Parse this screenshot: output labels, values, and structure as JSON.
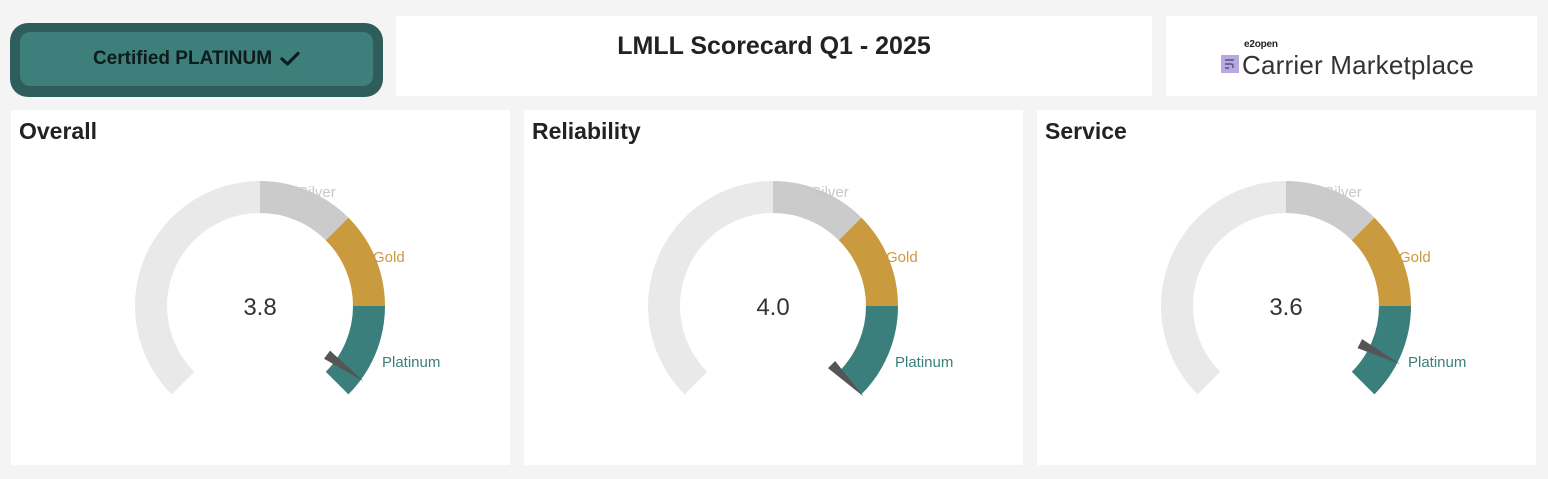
{
  "header": {
    "badge_label": "Certified PLATINUM",
    "badge_icon": "checkmark-icon",
    "title": "LMLL Scorecard Q1 - 2025",
    "logo_small": "e2open",
    "logo_text": "Carrier Marketplace",
    "logo_icon": "carrier-marketplace-logo-icon"
  },
  "colors": {
    "track": "#e9e9e9",
    "silver": "#cbcbcb",
    "gold": "#c99a3e",
    "platinum": "#3a7f7c",
    "silver_label": "#c8c8c8",
    "needle": "#555555"
  },
  "gauges": [
    {
      "title": "Overall",
      "value": 3.8,
      "value_label": "3.8",
      "labels": {
        "silver": "Silver",
        "gold": "Gold",
        "platinum": "Platinum"
      }
    },
    {
      "title": "Reliability",
      "value": 4.0,
      "value_label": "4.0",
      "labels": {
        "silver": "Silver",
        "gold": "Gold",
        "platinum": "Platinum"
      }
    },
    {
      "title": "Service",
      "value": 3.6,
      "value_label": "3.6",
      "labels": {
        "silver": "Silver",
        "gold": "Gold",
        "platinum": "Platinum"
      }
    }
  ]
}
